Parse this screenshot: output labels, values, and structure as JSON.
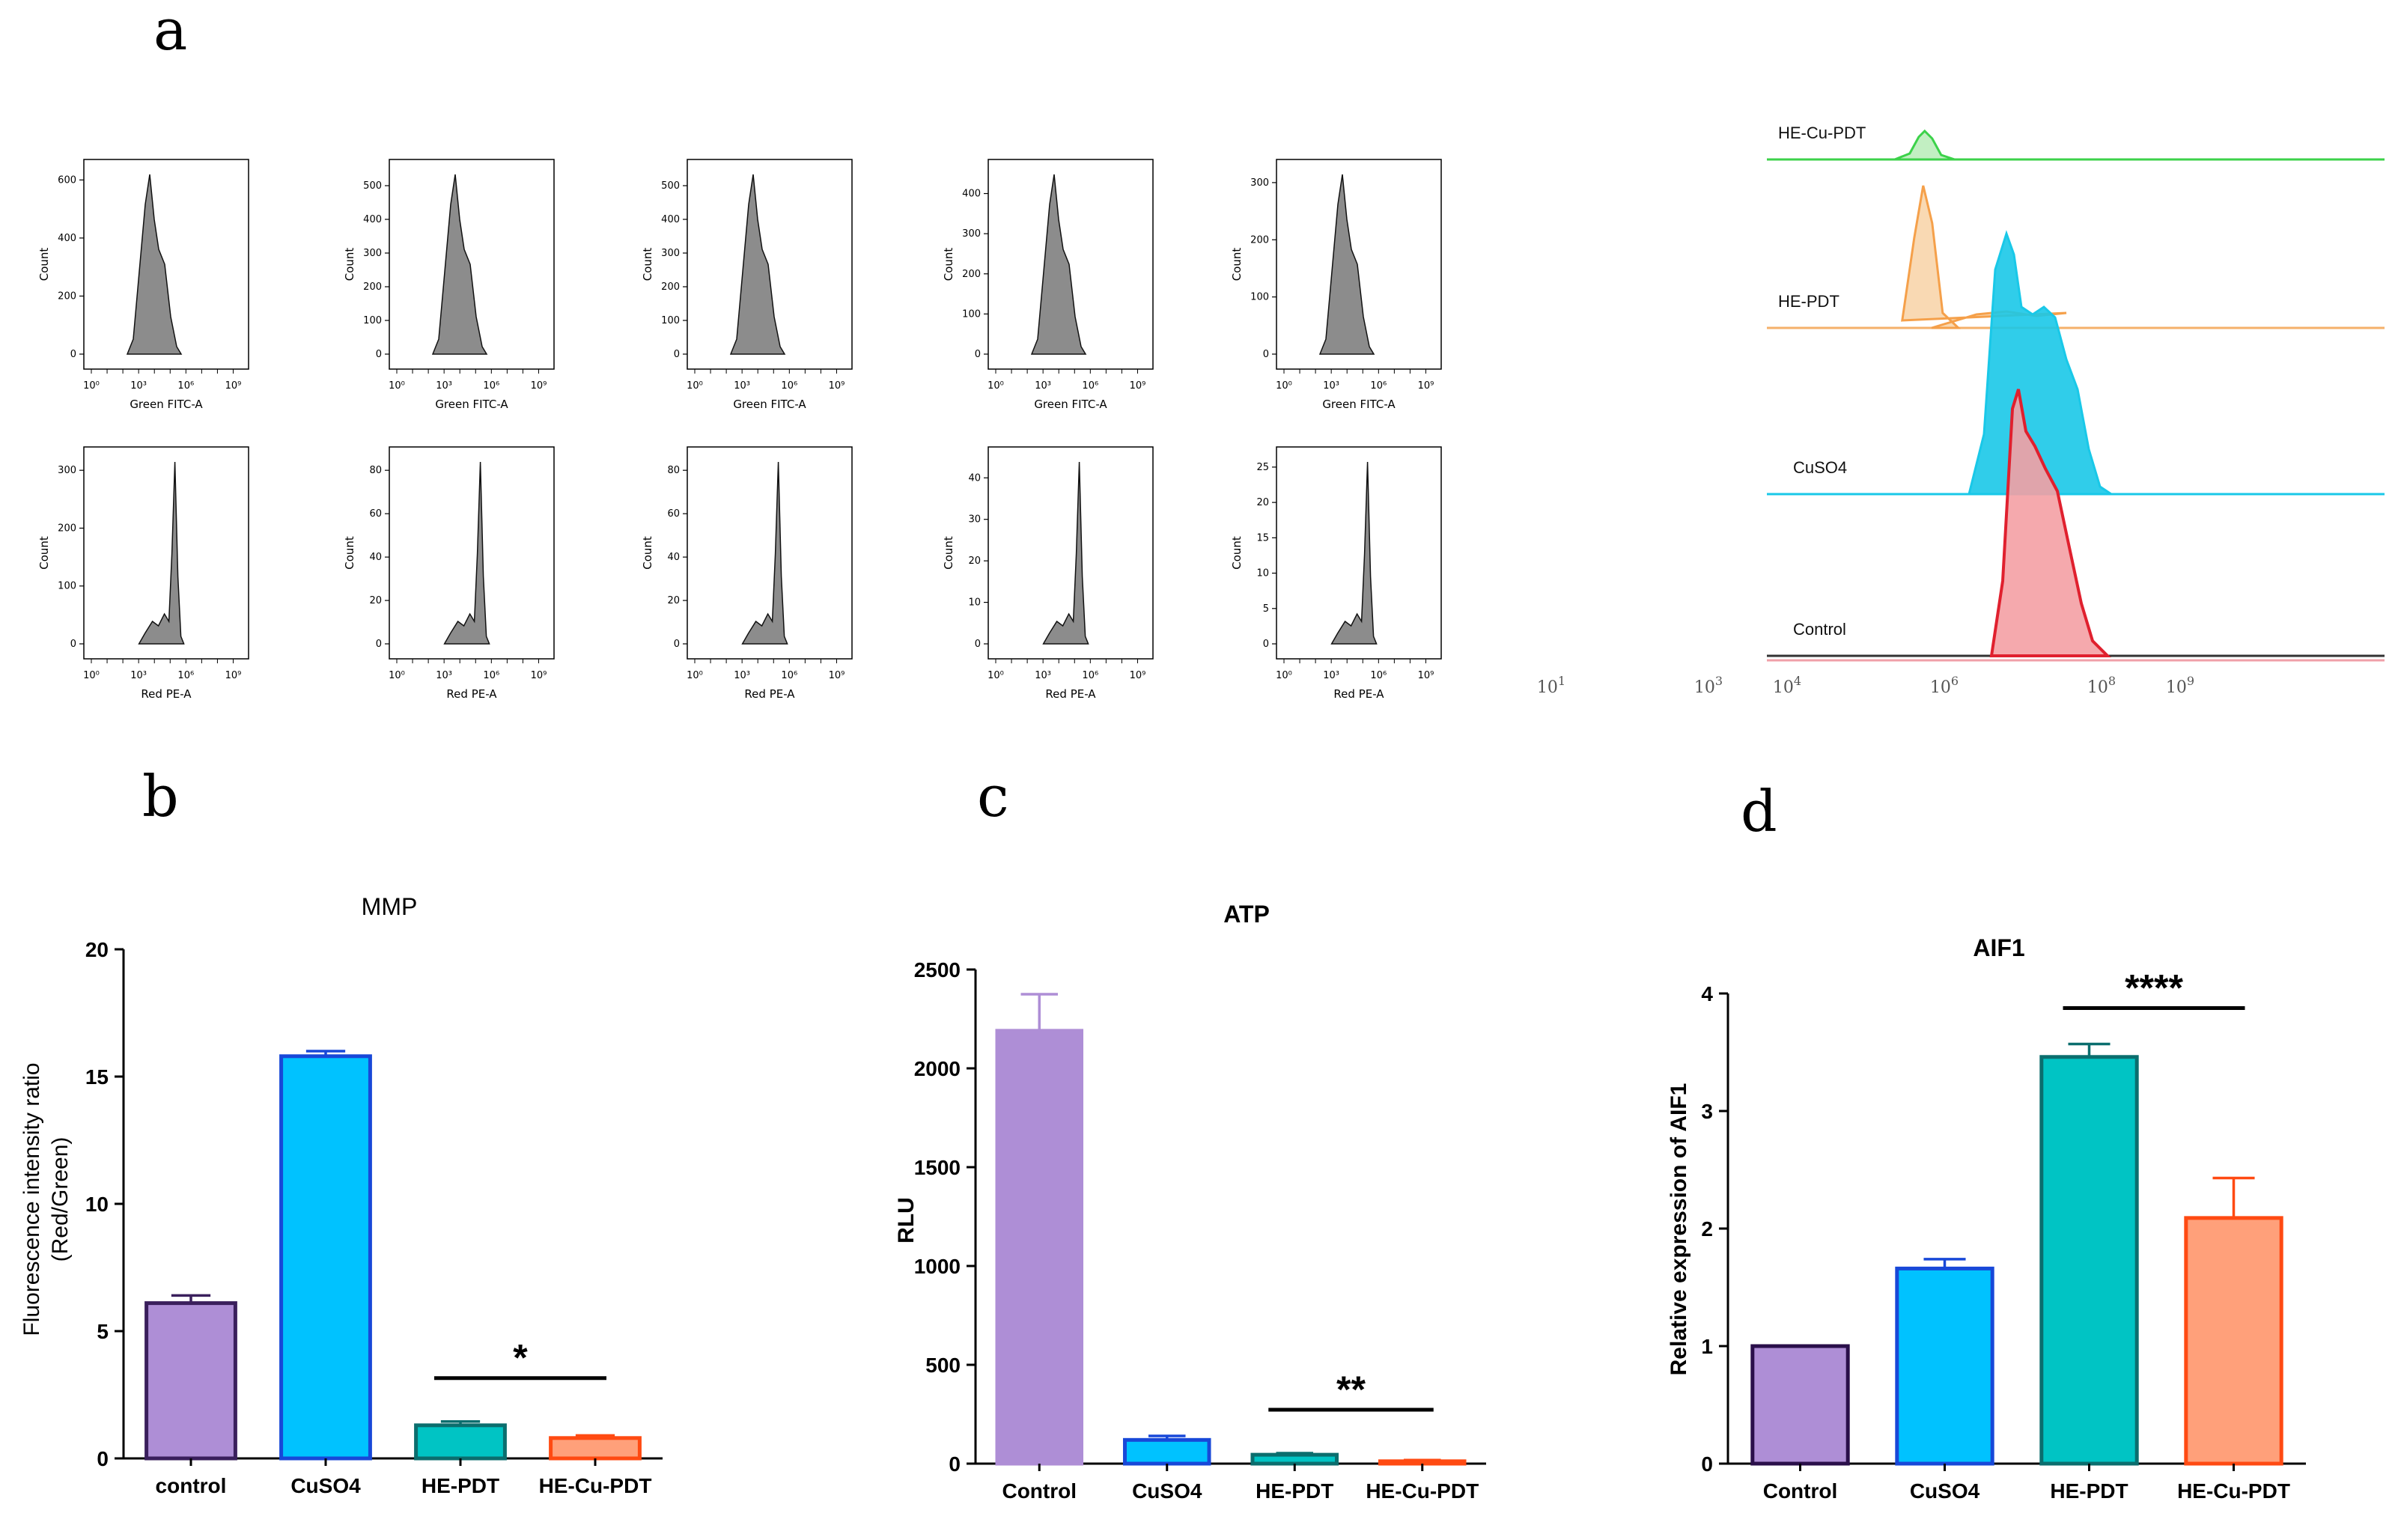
{
  "panel_letters": {
    "a": "a",
    "b": "b",
    "c": "c",
    "d": "d"
  },
  "flow_panels": {
    "green_xlabel": "Green FITC-A",
    "red_xlabel": "Red PE-A",
    "ylabel": "Count",
    "log_ticks": [
      "10⁰",
      "10³",
      "10⁶",
      "10⁹"
    ],
    "green_rows": [
      {
        "yticks": [
          "600",
          "400",
          "200",
          "0"
        ],
        "ymax": 650
      },
      {
        "yticks": [
          "500",
          "400",
          "300",
          "200",
          "100",
          "0"
        ],
        "ymax": 560
      },
      {
        "yticks": [
          "500",
          "400",
          "300",
          "200",
          "100",
          "0"
        ],
        "ymax": 560
      },
      {
        "yticks": [
          "400",
          "300",
          "200",
          "100",
          "0"
        ],
        "ymax": 470
      },
      {
        "yticks": [
          "300",
          "200",
          "100",
          "0"
        ],
        "ymax": 330
      }
    ],
    "red_rows": [
      {
        "yticks": [
          "300",
          "200",
          "100",
          "0"
        ],
        "ymax": 330
      },
      {
        "yticks": [
          "80",
          "60",
          "40",
          "20",
          "0"
        ],
        "ymax": 88
      },
      {
        "yticks": [
          "80",
          "60",
          "40",
          "20",
          "0"
        ],
        "ymax": 88
      },
      {
        "yticks": [
          "40",
          "30",
          "20",
          "10",
          "0"
        ],
        "ymax": 46
      },
      {
        "yticks": [
          "25",
          "20",
          "15",
          "10",
          "5",
          "0"
        ],
        "ymax": 27
      }
    ]
  },
  "overlay": {
    "labels": [
      "HE-Cu-PDT",
      "HE-PDT",
      "CuSO4",
      "Control"
    ],
    "colors": {
      "HE-Cu-PDT": "#3cd24a",
      "HE-PDT": "#f5a04a",
      "CuSO4": "#19c8e8",
      "Control": "#e0404a"
    },
    "xticks": [
      {
        "base": "10",
        "exp": "1",
        "decade": 1
      },
      {
        "base": "10",
        "exp": "3",
        "decade": 3
      },
      {
        "base": "10",
        "exp": "4",
        "decade": 4
      },
      {
        "base": "10",
        "exp": "6",
        "decade": 6
      },
      {
        "base": "10",
        "exp": "8",
        "decade": 8
      },
      {
        "base": "10",
        "exp": "9",
        "decade": 9
      }
    ]
  },
  "chart_data": [
    {
      "type": "bar",
      "title": "MMP",
      "ylabel": "Fluorescence intensity ratio\n(Red/Green)",
      "ylabel_lines": [
        "Fluorescence intensity ratio",
        "(Red/Green)"
      ],
      "categories": [
        "control",
        "CuSO4",
        "HE-PDT",
        "HE-Cu-PDT"
      ],
      "values": [
        6.1,
        15.8,
        1.3,
        0.8
      ],
      "errors": [
        0.3,
        0.2,
        0.15,
        0.1
      ],
      "ylim": [
        0,
        20
      ],
      "yticks": [
        0,
        5,
        10,
        15,
        20
      ],
      "significance": {
        "from": 2,
        "to": 3,
        "label": "*"
      },
      "colors": [
        {
          "fill": "#ae8ed6",
          "stroke": "#3a1f5c"
        },
        {
          "fill": "#00c2ff",
          "stroke": "#1848d8"
        },
        {
          "fill": "#00c4c4",
          "stroke": "#0b6e6e"
        },
        {
          "fill": "#ffa07a",
          "stroke": "#ff4a12"
        }
      ]
    },
    {
      "type": "bar",
      "title": "ATP",
      "ylabel": "RLU",
      "categories": [
        "Control",
        "CuSO4",
        "HE-PDT",
        "HE-Cu-PDT"
      ],
      "values": [
        2190,
        120,
        45,
        12
      ],
      "errors": [
        185,
        20,
        8,
        6
      ],
      "ylim": [
        0,
        2500
      ],
      "yticks": [
        0,
        500,
        1000,
        1500,
        2000,
        2500
      ],
      "significance": {
        "from": 2,
        "to": 3,
        "label": "**"
      },
      "colors": [
        {
          "fill": "#ae8ed6",
          "stroke": "#ae8ed6"
        },
        {
          "fill": "#00c2ff",
          "stroke": "#1848d8"
        },
        {
          "fill": "#00c4c4",
          "stroke": "#0b6e6e"
        },
        {
          "fill": "#ffa07a",
          "stroke": "#ff4a12"
        }
      ]
    },
    {
      "type": "bar",
      "title": "AIF1",
      "ylabel": "Relative expression of AIF1",
      "categories": [
        "Control",
        "CuSO4",
        "HE-PDT",
        "HE-Cu-PDT"
      ],
      "values": [
        1.0,
        1.66,
        3.46,
        2.09
      ],
      "errors": [
        0.0,
        0.08,
        0.11,
        0.34
      ],
      "ylim": [
        0,
        4
      ],
      "yticks": [
        0,
        1,
        2,
        3,
        4
      ],
      "significance": {
        "from": 2,
        "to": 3,
        "label": "****"
      },
      "colors": [
        {
          "fill": "#ae8ed6",
          "stroke": "#2a0f4a"
        },
        {
          "fill": "#00c2ff",
          "stroke": "#1848d8"
        },
        {
          "fill": "#00c4c4",
          "stroke": "#0b6e6e"
        },
        {
          "fill": "#ffa07a",
          "stroke": "#ff4a12"
        }
      ]
    }
  ]
}
